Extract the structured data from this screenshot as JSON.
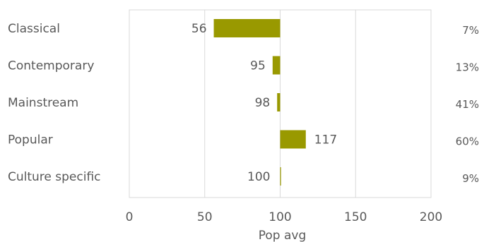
{
  "chart_data": {
    "type": "bar",
    "orientation": "horizontal",
    "baseline": 100,
    "categories": [
      "Classical",
      "Contemporary",
      "Mainstream",
      "Popular",
      "Culture specific"
    ],
    "values": [
      56,
      95,
      98,
      117,
      100
    ],
    "right_labels": [
      "7%",
      "13%",
      "41%",
      "60%",
      "9%"
    ],
    "xlabel": "Pop avg",
    "xlim": [
      0,
      200
    ],
    "xticks": [
      0,
      50,
      100,
      150,
      200
    ],
    "grid": true,
    "bar_color": "#999900",
    "grid_color": "#d9d9d9"
  }
}
